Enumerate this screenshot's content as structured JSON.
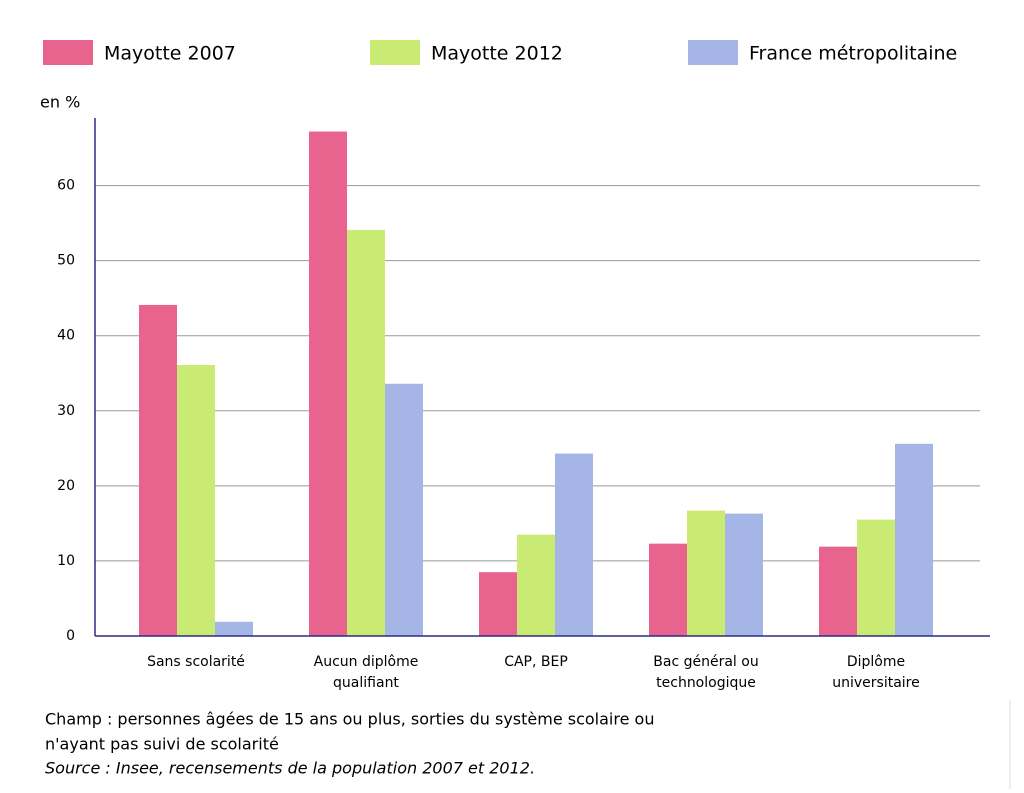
{
  "chart_data": {
    "type": "bar",
    "y_axis_label": "en %",
    "categories": [
      [
        "Sans scolarité"
      ],
      [
        "Aucun diplôme",
        "qualifiant"
      ],
      [
        "CAP, BEP"
      ],
      [
        "Bac général ou",
        "technologique"
      ],
      [
        "Diplôme",
        "universitaire"
      ]
    ],
    "series": [
      {
        "name": "Mayotte 2007",
        "color": "#e8648f",
        "values": [
          44.1,
          67.2,
          8.5,
          12.3,
          11.9
        ]
      },
      {
        "name": "Mayotte 2012",
        "color": "#c9ea73",
        "values": [
          36.1,
          54.1,
          13.5,
          16.7,
          15.5
        ]
      },
      {
        "name": "France métropolitaine",
        "color": "#a4b5e6",
        "values": [
          1.9,
          33.6,
          24.3,
          16.3,
          25.6
        ]
      }
    ],
    "ylim": [
      0,
      69
    ],
    "yticks": [
      0,
      10,
      20,
      30,
      40,
      50,
      60
    ],
    "grid": true,
    "notes": [
      "Champ : personnes âgées de 15 ans ou plus, sorties du système scolaire ou",
      "n'ayant pas suivi de scolarité"
    ],
    "source": "Source : Insee, recensements de la population 2007 et 2012."
  }
}
